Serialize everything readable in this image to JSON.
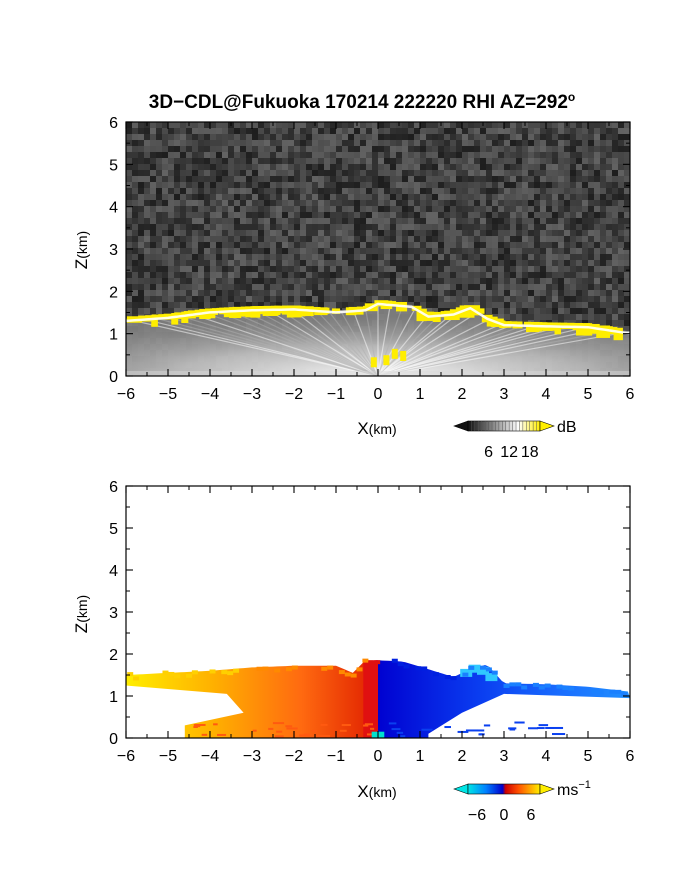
{
  "title": {
    "main": "3D−CDL@Fukuoka 170214 222220 RHI AZ=292",
    "degree": "o"
  },
  "chart_data": [
    {
      "type": "heatmap",
      "panel": "top",
      "quantity": "backscatter intensity",
      "xlabel": {
        "main": "X",
        "unit": "(km)"
      },
      "ylabel": {
        "main": "Z",
        "unit": "(km)"
      },
      "xlim": [
        -6,
        6
      ],
      "ylim": [
        0,
        6
      ],
      "x_ticks": [
        "−6",
        "−5",
        "−4",
        "−3",
        "−2",
        "−1",
        "0",
        "1",
        "2",
        "3",
        "4",
        "5",
        "6"
      ],
      "y_ticks": [
        "0",
        "1",
        "2",
        "3",
        "4",
        "5",
        "6"
      ],
      "background": "noise (dark grey)",
      "cloud_top_profile_km": [
        [
          -6.0,
          1.35
        ],
        [
          -5.0,
          1.42
        ],
        [
          -4.0,
          1.55
        ],
        [
          -3.0,
          1.6
        ],
        [
          -2.0,
          1.62
        ],
        [
          -1.0,
          1.55
        ],
        [
          -0.3,
          1.6
        ],
        [
          0.0,
          1.75
        ],
        [
          0.8,
          1.68
        ],
        [
          1.2,
          1.45
        ],
        [
          1.8,
          1.5
        ],
        [
          2.2,
          1.65
        ],
        [
          2.6,
          1.4
        ],
        [
          3.0,
          1.25
        ],
        [
          4.0,
          1.22
        ],
        [
          5.0,
          1.2
        ],
        [
          6.0,
          1.05
        ]
      ],
      "colorbar": {
        "unit": "dB",
        "tick_labels": [
          "6",
          "12",
          "18"
        ],
        "range": [
          0,
          21
        ],
        "colors": [
          "#111111",
          "#ffffff",
          "#ffee00"
        ]
      }
    },
    {
      "type": "heatmap",
      "panel": "bottom",
      "quantity": "radial velocity",
      "xlabel": {
        "main": "X",
        "unit": "(km)"
      },
      "ylabel": {
        "main": "Z",
        "unit": "(km)"
      },
      "xlim": [
        -6,
        6
      ],
      "ylim": [
        0,
        6
      ],
      "x_ticks": [
        "−6",
        "−5",
        "−4",
        "−3",
        "−2",
        "−1",
        "0",
        "1",
        "2",
        "3",
        "4",
        "5",
        "6"
      ],
      "y_ticks": [
        "0",
        "1",
        "2",
        "3",
        "4",
        "5",
        "6"
      ],
      "background": "white (no data)",
      "velocity_pattern": "positive (yellow-orange-red) for X<0, negative (blue) for X>0",
      "cloud_top_profile_km": [
        [
          -6.0,
          1.5
        ],
        [
          -5.0,
          1.55
        ],
        [
          -4.0,
          1.6
        ],
        [
          -3.0,
          1.68
        ],
        [
          -2.0,
          1.72
        ],
        [
          -1.0,
          1.72
        ],
        [
          -0.6,
          1.55
        ],
        [
          -0.3,
          1.85
        ],
        [
          0.0,
          1.85
        ],
        [
          0.6,
          1.82
        ],
        [
          1.0,
          1.7
        ],
        [
          1.8,
          1.45
        ],
        [
          2.2,
          1.65
        ],
        [
          2.6,
          1.75
        ],
        [
          3.0,
          1.3
        ],
        [
          4.0,
          1.28
        ],
        [
          5.0,
          1.22
        ],
        [
          6.0,
          1.1
        ]
      ],
      "colorbar": {
        "unit_main": "ms",
        "unit_exp": "−1",
        "tick_labels": [
          "−6",
          "0",
          "6"
        ],
        "range": [
          -8,
          8
        ],
        "colors": [
          "#00e5e5",
          "#0080ff",
          "#0000cc",
          "#cc0000",
          "#ff5000",
          "#ffa000",
          "#ffee00"
        ]
      }
    }
  ]
}
